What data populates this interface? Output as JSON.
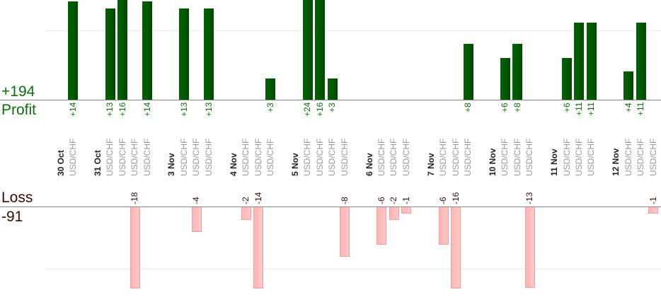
{
  "summary": {
    "profit_total": "+194",
    "profit_label": "Profit",
    "loss_label": "Loss",
    "loss_total": "-91"
  },
  "colors": {
    "profit": "#006400",
    "profit_dark": "#004a00",
    "loss_fill": "#ffb6b6",
    "loss_border": "#ff9a9a",
    "profit_text": "#0a6e0a",
    "loss_text": "#3a0a0a"
  },
  "chart_data": {
    "type": "bar",
    "title": "",
    "profit_axis": {
      "ylim": [
        0,
        14
      ],
      "gridline": 10
    },
    "loss_axis": {
      "ylim": [
        -13,
        0
      ],
      "gridline": -10
    },
    "days": [
      {
        "date": "30 Oct",
        "trades": [
          {
            "symbol": "USD/CHF",
            "value": 14
          }
        ]
      },
      {
        "date": "31 Oct",
        "trades": [
          {
            "symbol": "USD/CHF",
            "value": 13
          },
          {
            "symbol": "USD/CHF",
            "value": 16
          },
          {
            "symbol": "USD/CHF",
            "value": -18
          },
          {
            "symbol": "USD/CHF",
            "value": 14
          }
        ]
      },
      {
        "date": "3 Nov",
        "trades": [
          {
            "symbol": "USD/CHF",
            "value": 13
          },
          {
            "symbol": "USD/CHF",
            "value": -4
          },
          {
            "symbol": "USD/CHF",
            "value": 13
          }
        ]
      },
      {
        "date": "4 Nov",
        "trades": [
          {
            "symbol": "USD/CHF",
            "value": -2
          },
          {
            "symbol": "USD/CHF",
            "value": -14
          },
          {
            "symbol": "USD/CHF",
            "value": 3
          }
        ]
      },
      {
        "date": "5 Nov",
        "trades": [
          {
            "symbol": "USD/CHF",
            "value": 24
          },
          {
            "symbol": "USD/CHF",
            "value": 16
          },
          {
            "symbol": "USD/CHF",
            "value": 3
          },
          {
            "symbol": "USD/CHF",
            "value": -8
          }
        ]
      },
      {
        "date": "6 Nov",
        "trades": [
          {
            "symbol": "USD/CHF",
            "value": -6
          },
          {
            "symbol": "USD/CHF",
            "value": -2
          },
          {
            "symbol": "USD/CHF",
            "value": -1
          }
        ]
      },
      {
        "date": "7 Nov",
        "trades": [
          {
            "symbol": "USD/CHF",
            "value": -6
          },
          {
            "symbol": "USD/CHF",
            "value": -16
          },
          {
            "symbol": "USD/CHF",
            "value": 8
          }
        ]
      },
      {
        "date": "10 Nov",
        "trades": [
          {
            "symbol": "USD/CHF",
            "value": 6
          },
          {
            "symbol": "USD/CHF",
            "value": 8
          },
          {
            "symbol": "USD/CHF",
            "value": -13
          }
        ]
      },
      {
        "date": "11 Nov",
        "trades": [
          {
            "symbol": "USD/CHF",
            "value": 6
          },
          {
            "symbol": "USD/CHF",
            "value": 11
          },
          {
            "symbol": "USD/CHF",
            "value": 11
          }
        ]
      },
      {
        "date": "12 Nov",
        "trades": [
          {
            "symbol": "USD/CHF",
            "value": 4
          },
          {
            "symbol": "USD/CHF",
            "value": 11
          },
          {
            "symbol": "USD/CHF",
            "value": -1
          }
        ]
      }
    ]
  }
}
